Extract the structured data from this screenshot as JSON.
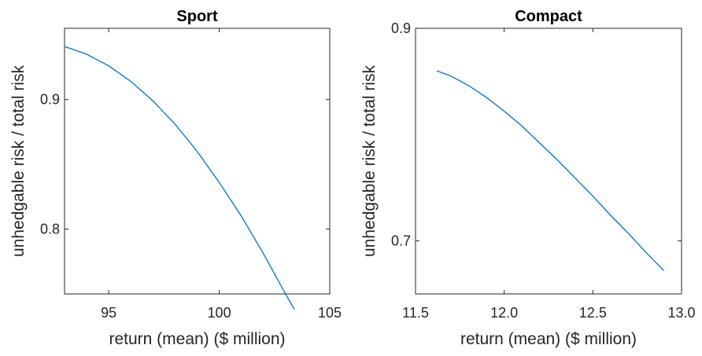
{
  "chart_data": [
    {
      "type": "line",
      "title": "Sport",
      "xlabel": "return (mean) ($ million)",
      "ylabel": "unhedgable risk / total risk",
      "xlim": [
        93,
        105
      ],
      "ylim": [
        0.75,
        0.955
      ],
      "xticks": [
        95,
        100,
        105
      ],
      "xtick_labels": [
        "95",
        "100",
        "105"
      ],
      "yticks": [
        0.8,
        0.9
      ],
      "ytick_labels": [
        "0.8",
        "0.9"
      ],
      "grid": false,
      "series": [
        {
          "color": "#0072BD",
          "x": [
            93.0,
            94.0,
            95.0,
            96.0,
            97.0,
            98.0,
            99.0,
            100.0,
            101.0,
            102.0,
            103.0,
            103.4
          ],
          "y": [
            0.941,
            0.935,
            0.926,
            0.914,
            0.899,
            0.881,
            0.86,
            0.836,
            0.81,
            0.781,
            0.75,
            0.738
          ]
        }
      ]
    },
    {
      "type": "line",
      "title": "Compact",
      "xlabel": "return (mean) ($ million)",
      "ylabel": "unhedgable risk / total risk",
      "xlim": [
        11.5,
        13.0
      ],
      "ylim": [
        0.65,
        0.9
      ],
      "xticks": [
        11.5,
        12.0,
        12.5,
        13.0
      ],
      "xtick_labels": [
        "11.5",
        "12.0",
        "12.5",
        "13.0"
      ],
      "yticks": [
        0.7,
        0.9
      ],
      "ytick_labels": [
        "0.7",
        "0.9"
      ],
      "grid": false,
      "series": [
        {
          "color": "#0072BD",
          "x": [
            11.62,
            11.7,
            11.8,
            11.9,
            12.0,
            12.1,
            12.2,
            12.3,
            12.4,
            12.5,
            12.6,
            12.7,
            12.8,
            12.9
          ],
          "y": [
            0.86,
            0.855,
            0.846,
            0.835,
            0.822,
            0.808,
            0.792,
            0.776,
            0.759,
            0.742,
            0.724,
            0.707,
            0.689,
            0.672
          ]
        }
      ]
    }
  ]
}
